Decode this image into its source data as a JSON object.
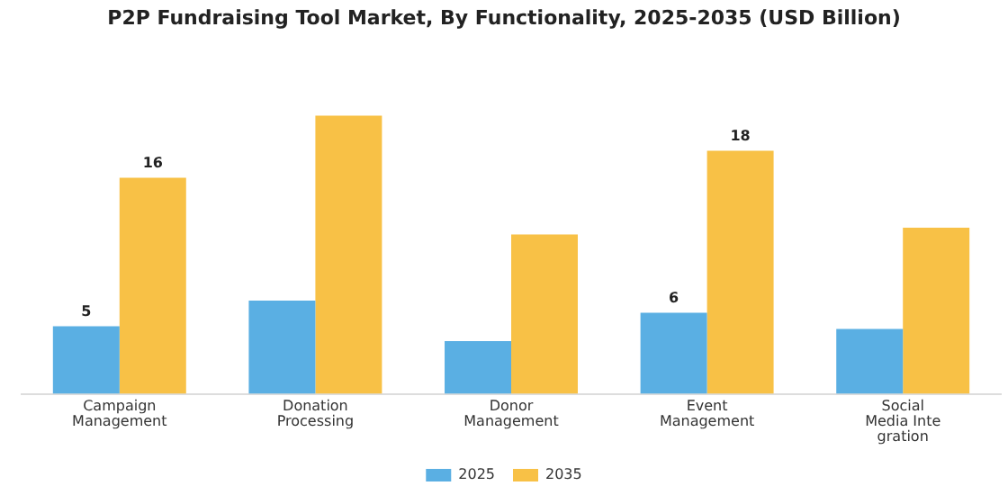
{
  "chart_data": {
    "type": "bar",
    "title": "P2P Fundraising Tool Market, By Functionality, 2025-2035 (USD Billion)",
    "categories": [
      "Campaign\nManagement",
      "Donation\nProcessing",
      "Donor\nManagement",
      "Event\nManagement",
      "Social\nMedia Inte\ngration"
    ],
    "series": [
      {
        "name": "2025",
        "color": "#5aafe3",
        "values": [
          5,
          6.9,
          3.9,
          6,
          4.8
        ],
        "value_labels": [
          "5",
          null,
          null,
          "6",
          null
        ]
      },
      {
        "name": "2035",
        "color": "#f8c146",
        "values": [
          16,
          20.6,
          11.8,
          18,
          12.3
        ],
        "value_labels": [
          "16",
          null,
          null,
          "18",
          null
        ]
      }
    ],
    "grid": false,
    "legend": "bottom"
  }
}
